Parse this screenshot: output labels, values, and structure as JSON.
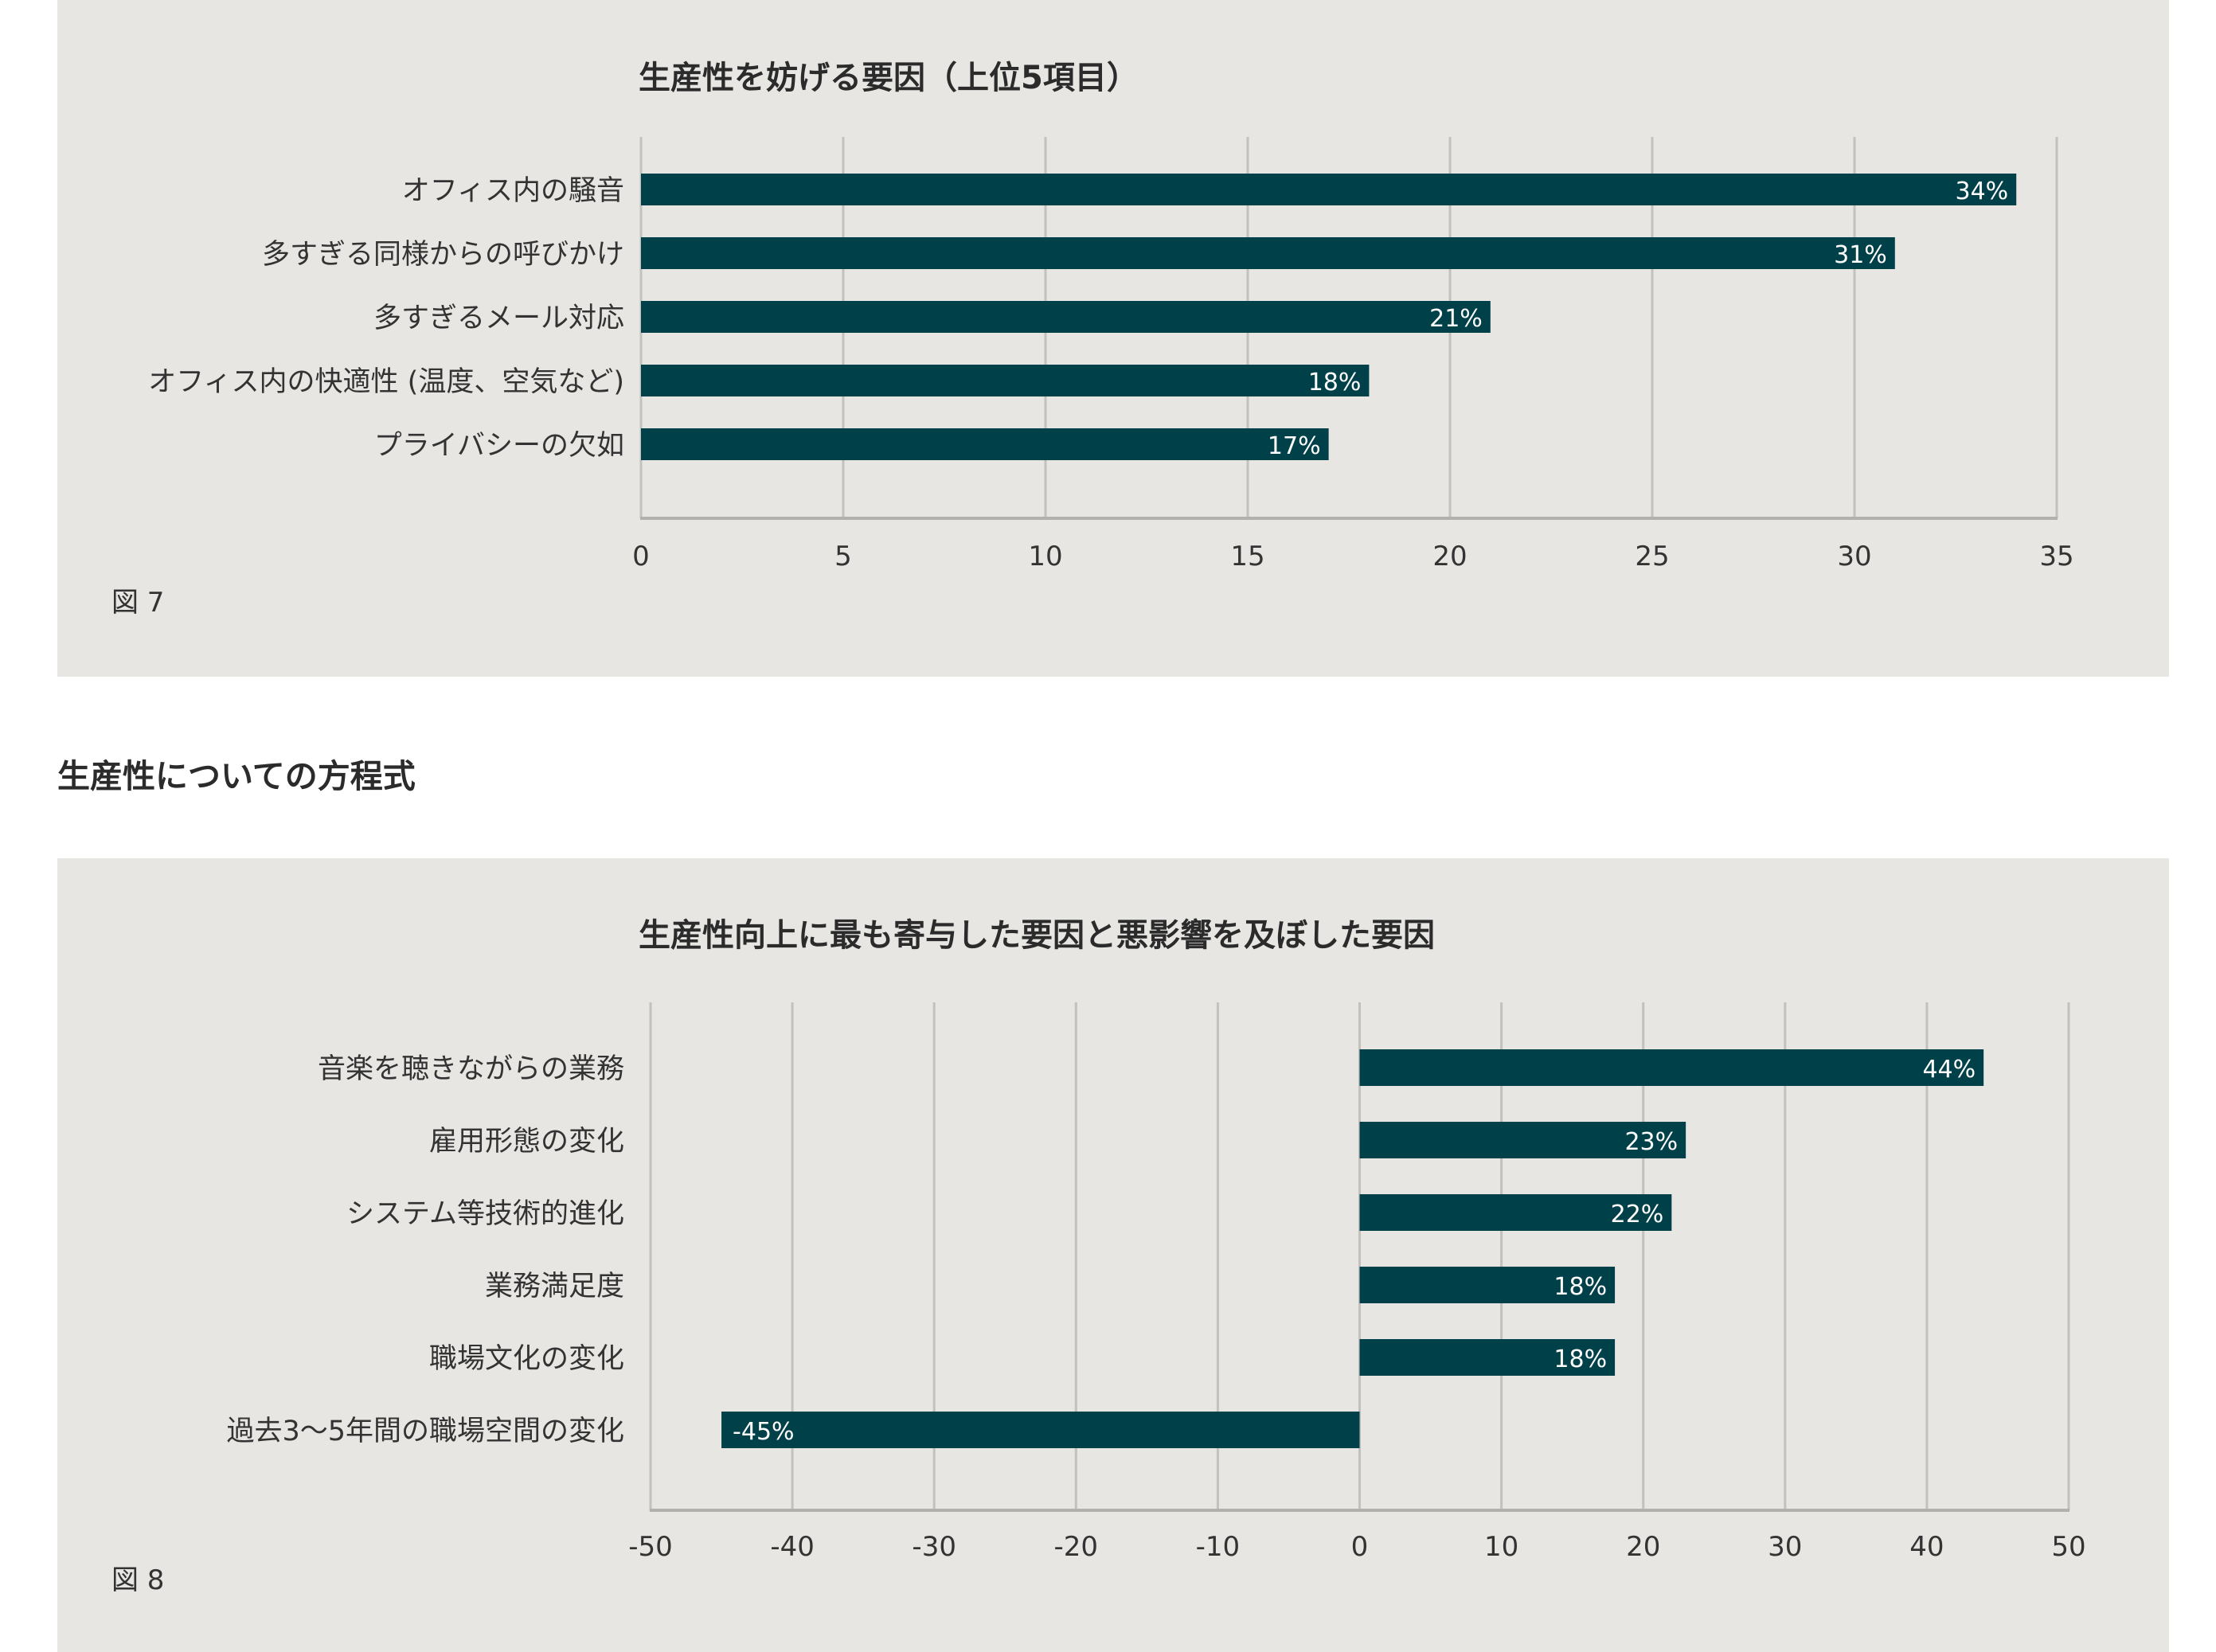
{
  "section_heading": "生産性についての方程式",
  "figures": [
    {
      "fig_label": "図 7",
      "chart_data": {
        "type": "bar",
        "orientation": "horizontal",
        "title": "生産性を妨げる要因（上位5項目）",
        "categories": [
          "オフィス内の騒音",
          "多すぎる同様からの呼びかけ",
          "多すぎるメール対応",
          "オフィス内の快適性 (温度、空気など)",
          "プライバシーの欠如"
        ],
        "values": [
          34,
          31,
          21,
          18,
          17
        ],
        "data_labels": [
          "34%",
          "31%",
          "21%",
          "18%",
          "17%"
        ],
        "xlim": [
          0,
          35
        ],
        "xticks": [
          0,
          5,
          10,
          15,
          20,
          25,
          30,
          35
        ],
        "grid": "vertical",
        "legend": "none",
        "bar_color": "#004149"
      }
    },
    {
      "fig_label": "図 8",
      "chart_data": {
        "type": "bar",
        "orientation": "horizontal",
        "title": "生産性向上に最も寄与した要因と悪影響を及ぼした要因",
        "categories": [
          "音楽を聴きながらの業務",
          "雇用形態の変化",
          "システム等技術的進化",
          "業務満足度",
          "職場文化の変化",
          "過去3～5年間の職場空間の変化"
        ],
        "values": [
          44,
          23,
          22,
          18,
          18,
          -45
        ],
        "data_labels": [
          "44%",
          "23%",
          "22%",
          "18%",
          "18%",
          "-45%"
        ],
        "xlim": [
          -50,
          50
        ],
        "xticks": [
          -50,
          -40,
          -30,
          -20,
          -10,
          0,
          10,
          20,
          30,
          40,
          50
        ],
        "grid": "vertical",
        "legend": "none",
        "bar_color": "#004149"
      }
    }
  ]
}
